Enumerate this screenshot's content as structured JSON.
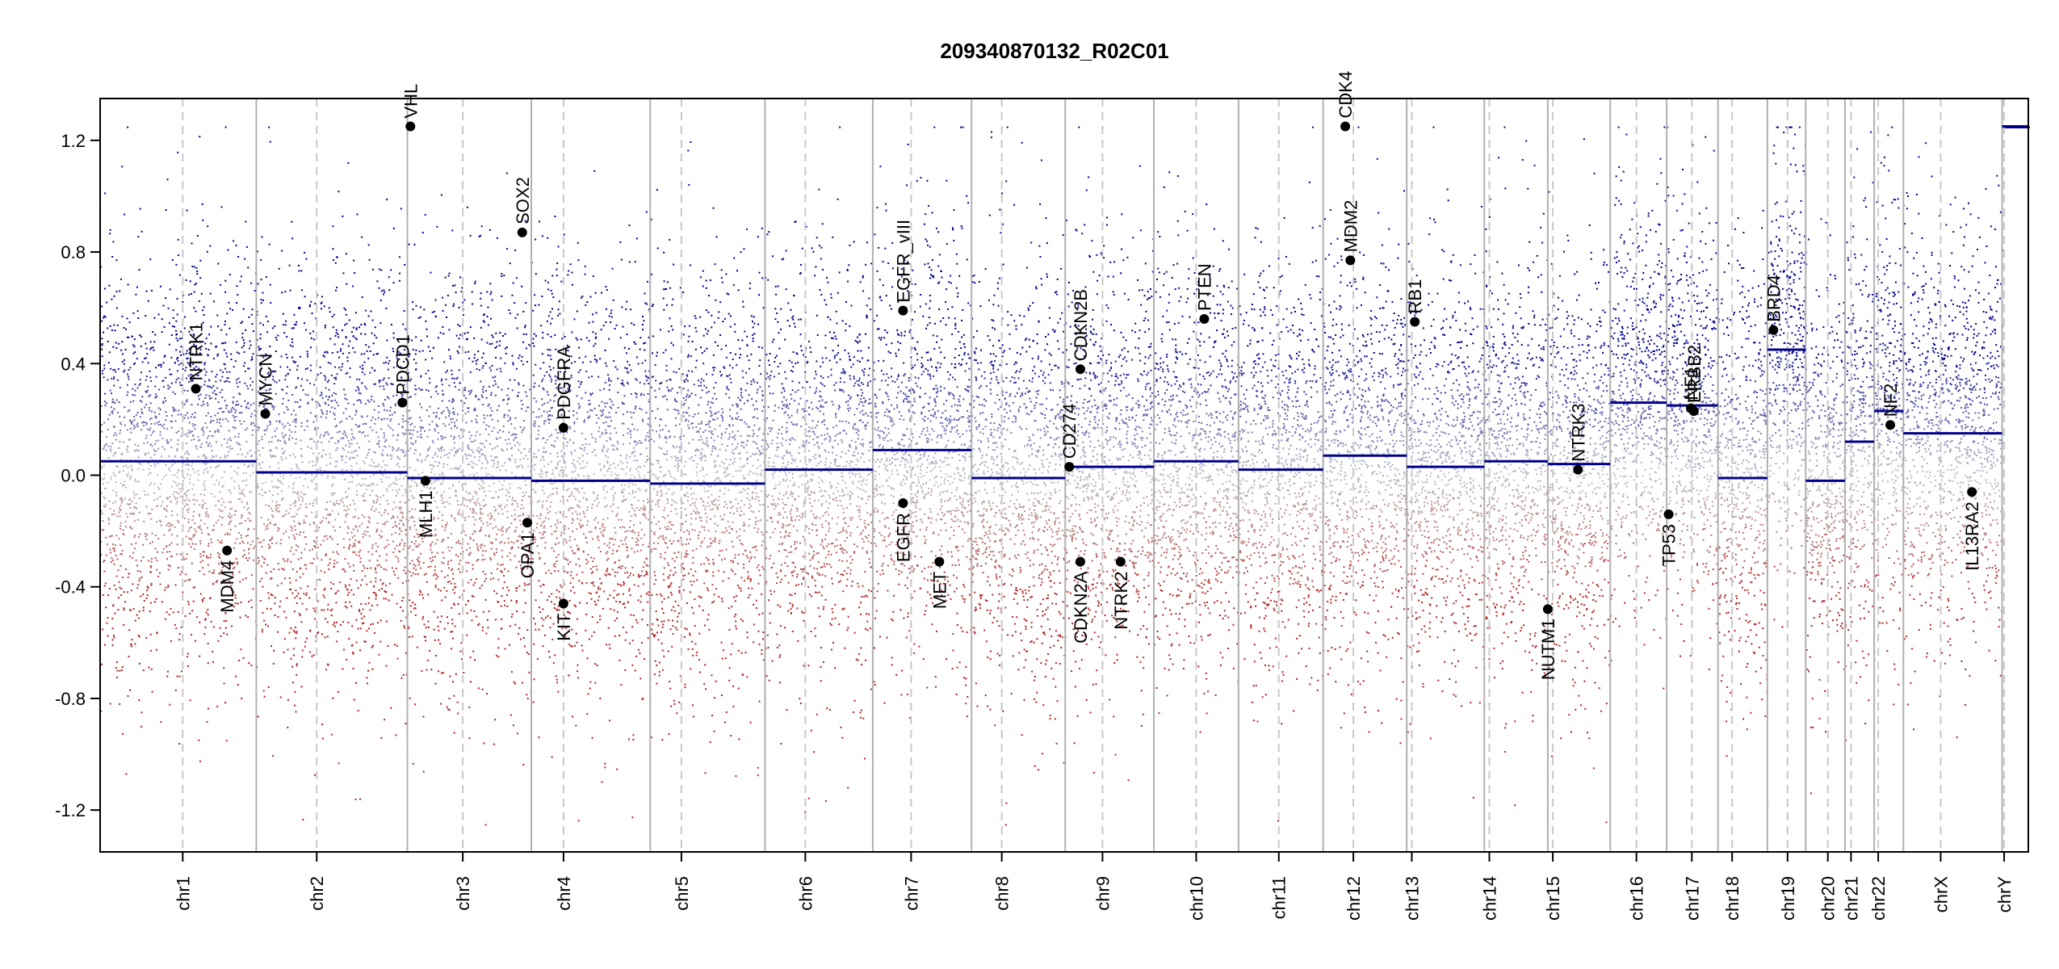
{
  "chart_data": {
    "type": "scatter",
    "title": "209340870132_R02C01",
    "ylim": [
      -1.35,
      1.35
    ],
    "yticks": [
      "-1.2",
      "-0.8",
      "-0.4",
      "0.0",
      "0.4",
      "0.8",
      "1.2"
    ],
    "ytick_values": [
      -1.2,
      -0.8,
      -0.4,
      0.0,
      0.4,
      0.8,
      1.2
    ],
    "chromosomes": [
      {
        "name": "chr1",
        "start": 0,
        "end": 1.55,
        "centromere": 0.82,
        "segment": 0.05
      },
      {
        "name": "chr2",
        "start": 1.55,
        "end": 3.05,
        "centromere": 2.15,
        "segment": 0.01
      },
      {
        "name": "chr3",
        "start": 3.05,
        "end": 4.28,
        "centromere": 3.6,
        "segment": -0.01
      },
      {
        "name": "chr4",
        "start": 4.28,
        "end": 5.46,
        "centromere": 4.6,
        "segment": -0.02
      },
      {
        "name": "chr5",
        "start": 5.46,
        "end": 6.6,
        "centromere": 5.77,
        "segment": -0.03
      },
      {
        "name": "chr6",
        "start": 6.6,
        "end": 7.67,
        "centromere": 7.0,
        "segment": 0.02
      },
      {
        "name": "chr7",
        "start": 7.67,
        "end": 8.65,
        "centromere": 8.05,
        "segment": 0.09
      },
      {
        "name": "chr8",
        "start": 8.65,
        "end": 9.58,
        "centromere": 8.95,
        "segment": -0.01
      },
      {
        "name": "chr9",
        "start": 9.58,
        "end": 10.46,
        "centromere": 9.95,
        "segment": 0.03
      },
      {
        "name": "chr10",
        "start": 10.46,
        "end": 11.3,
        "centromere": 10.88,
        "segment": 0.05
      },
      {
        "name": "chr11",
        "start": 11.3,
        "end": 12.14,
        "centromere": 11.7,
        "segment": 0.02
      },
      {
        "name": "chr12",
        "start": 12.14,
        "end": 12.97,
        "centromere": 12.44,
        "segment": 0.07
      },
      {
        "name": "chr13",
        "start": 12.97,
        "end": 13.74,
        "centromere": 13.02,
        "segment": 0.03
      },
      {
        "name": "chr14",
        "start": 13.74,
        "end": 14.37,
        "centromere": 13.79,
        "segment": 0.05
      },
      {
        "name": "chr15",
        "start": 14.37,
        "end": 14.99,
        "centromere": 14.42,
        "segment": 0.04
      },
      {
        "name": "chr16",
        "start": 14.99,
        "end": 15.55,
        "centromere": 15.25,
        "segment": 0.26
      },
      {
        "name": "chr17",
        "start": 15.55,
        "end": 16.06,
        "centromere": 15.8,
        "segment": 0.25
      },
      {
        "name": "chr18",
        "start": 16.06,
        "end": 16.55,
        "centromere": 16.2,
        "segment": -0.01
      },
      {
        "name": "chr19",
        "start": 16.55,
        "end": 16.93,
        "centromere": 16.75,
        "segment": 0.45
      },
      {
        "name": "chr20",
        "start": 16.93,
        "end": 17.32,
        "centromere": 17.15,
        "segment": -0.02
      },
      {
        "name": "chr21",
        "start": 17.32,
        "end": 17.61,
        "centromere": 17.38,
        "segment": 0.12
      },
      {
        "name": "chr22",
        "start": 17.61,
        "end": 17.9,
        "centromere": 17.65,
        "segment": 0.23
      },
      {
        "name": "chrX",
        "start": 17.9,
        "end": 18.88,
        "centromere": 18.27,
        "segment": 0.15
      },
      {
        "name": "chrY",
        "start": 18.88,
        "end": 19.14,
        "centromere": 18.9,
        "segment": 1.25
      }
    ],
    "genes": [
      {
        "name": "NTRK1",
        "pos": 0.95,
        "value": 0.31
      },
      {
        "name": "MDM4",
        "pos": 1.26,
        "value": -0.27
      },
      {
        "name": "MYCN",
        "pos": 1.64,
        "value": 0.22
      },
      {
        "name": "PDCD1",
        "pos": 3.0,
        "value": 0.26
      },
      {
        "name": "VHL",
        "pos": 3.08,
        "value": 1.25
      },
      {
        "name": "MLH1",
        "pos": 3.23,
        "value": -0.02
      },
      {
        "name": "SOX2",
        "pos": 4.19,
        "value": 0.87
      },
      {
        "name": "OPA1",
        "pos": 4.24,
        "value": -0.17
      },
      {
        "name": "PDGFRA",
        "pos": 4.6,
        "value": 0.17
      },
      {
        "name": "KIT",
        "pos": 4.6,
        "value": -0.46
      },
      {
        "name": "EGFR_vIII",
        "pos": 7.97,
        "value": 0.59
      },
      {
        "name": "EGFR",
        "pos": 7.97,
        "value": -0.1
      },
      {
        "name": "MET",
        "pos": 8.33,
        "value": -0.31
      },
      {
        "name": "CD274",
        "pos": 9.62,
        "value": 0.03
      },
      {
        "name": "CDKN2B",
        "pos": 9.73,
        "value": 0.38
      },
      {
        "name": "CDKN2A",
        "pos": 9.73,
        "value": -0.31
      },
      {
        "name": "NTRK2",
        "pos": 10.13,
        "value": -0.31
      },
      {
        "name": "PTEN",
        "pos": 10.96,
        "value": 0.56
      },
      {
        "name": "MDM2",
        "pos": 12.41,
        "value": 0.77
      },
      {
        "name": "CDK4",
        "pos": 12.36,
        "value": 1.25
      },
      {
        "name": "RB1",
        "pos": 13.05,
        "value": 0.55
      },
      {
        "name": "NUTM1",
        "pos": 14.37,
        "value": -0.48
      },
      {
        "name": "NTRK3",
        "pos": 14.67,
        "value": 0.02
      },
      {
        "name": "TP53",
        "pos": 15.57,
        "value": -0.14
      },
      {
        "name": "NF1",
        "pos": 15.79,
        "value": 0.24
      },
      {
        "name": "ERBB2",
        "pos": 15.82,
        "value": 0.23
      },
      {
        "name": "BRD4",
        "pos": 16.61,
        "value": 0.52
      },
      {
        "name": "NF2",
        "pos": 17.77,
        "value": 0.18
      },
      {
        "name": "IL13RA2",
        "pos": 18.58,
        "value": -0.06
      }
    ],
    "point_colors": {
      "gain": "#00008b",
      "neutral": "#b8b8b8",
      "loss": "#b22222"
    },
    "segment_color": "#00008b",
    "grid": false
  }
}
